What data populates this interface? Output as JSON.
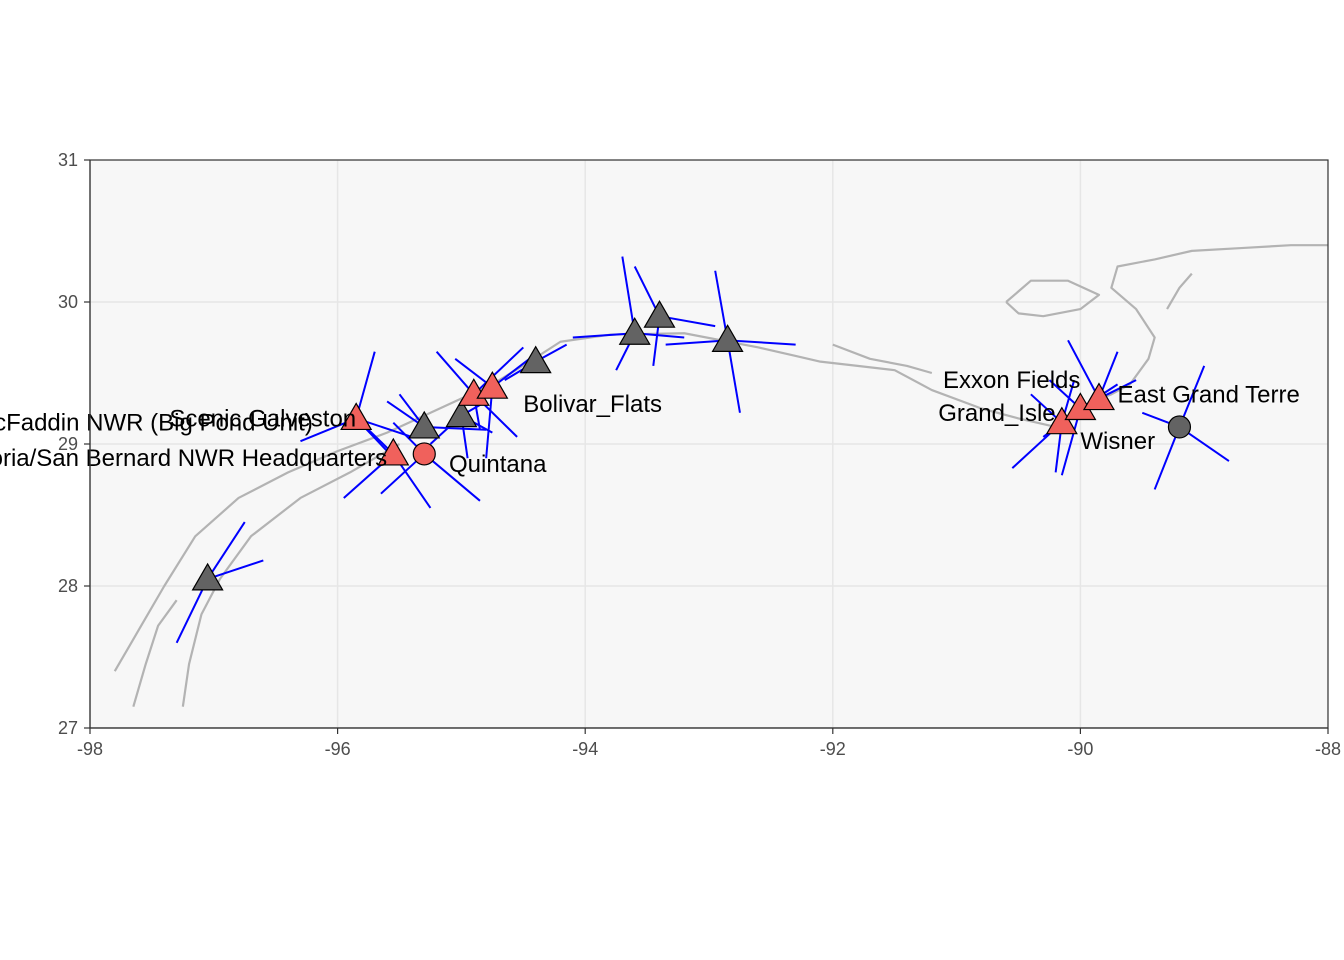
{
  "map": {
    "xlim": [
      -98,
      -88
    ],
    "ylim": [
      27,
      31
    ],
    "x_ticks": [
      {
        "value": -98,
        "label": "-98"
      },
      {
        "value": -96,
        "label": "-96"
      },
      {
        "value": -94,
        "label": "-94"
      },
      {
        "value": -92,
        "label": "-92"
      },
      {
        "value": -90,
        "label": "-90"
      },
      {
        "value": -88,
        "label": "-88"
      }
    ],
    "y_ticks": [
      {
        "value": 27,
        "label": "27"
      },
      {
        "value": 28,
        "label": "28"
      },
      {
        "value": 29,
        "label": "29"
      },
      {
        "value": 30,
        "label": "30"
      },
      {
        "value": 31,
        "label": "31"
      }
    ],
    "grid": true,
    "colors": {
      "panel": "#f7f7f7",
      "grid": "#e6e6e6",
      "coast": "#b3b3b3",
      "axis": "#333333",
      "wind": "#0000ff",
      "site_red": "#f0615c",
      "site_gray": "#636363",
      "outline": "#000000"
    }
  },
  "coast_lines": [
    [
      [
        -97.8,
        27.4
      ],
      [
        -97.6,
        27.7
      ],
      [
        -97.4,
        28.0
      ],
      [
        -97.15,
        28.35
      ],
      [
        -96.8,
        28.62
      ],
      [
        -96.4,
        28.8
      ],
      [
        -96.0,
        28.95
      ],
      [
        -95.6,
        29.08
      ],
      [
        -95.3,
        29.2
      ],
      [
        -95.0,
        29.32
      ],
      [
        -94.75,
        29.42
      ],
      [
        -94.45,
        29.58
      ],
      [
        -94.2,
        29.72
      ],
      [
        -93.8,
        29.77
      ],
      [
        -93.2,
        29.78
      ],
      [
        -92.6,
        29.68
      ],
      [
        -92.3,
        29.62
      ],
      [
        -92.1,
        29.58
      ],
      [
        -91.8,
        29.55
      ],
      [
        -91.5,
        29.52
      ],
      [
        -91.2,
        29.38
      ],
      [
        -90.8,
        29.25
      ],
      [
        -90.5,
        29.18
      ],
      [
        -90.2,
        29.12
      ],
      [
        -90.05,
        29.2
      ],
      [
        -89.9,
        29.3
      ],
      [
        -89.75,
        29.35
      ],
      [
        -89.6,
        29.42
      ],
      [
        -89.45,
        29.6
      ],
      [
        -89.4,
        29.75
      ],
      [
        -89.55,
        29.95
      ],
      [
        -89.75,
        30.1
      ],
      [
        -89.7,
        30.25
      ],
      [
        -89.4,
        30.3
      ],
      [
        -89.1,
        30.36
      ],
      [
        -88.7,
        30.38
      ],
      [
        -88.3,
        30.4
      ],
      [
        -88.0,
        30.4
      ]
    ],
    [
      [
        -97.25,
        27.15
      ],
      [
        -97.2,
        27.45
      ],
      [
        -97.1,
        27.8
      ],
      [
        -96.95,
        28.05
      ],
      [
        -96.7,
        28.35
      ],
      [
        -96.3,
        28.62
      ],
      [
        -95.9,
        28.8
      ],
      [
        -95.5,
        29.0
      ]
    ],
    [
      [
        -97.65,
        27.15
      ],
      [
        -97.55,
        27.45
      ],
      [
        -97.45,
        27.72
      ],
      [
        -97.3,
        27.9
      ]
    ],
    [
      [
        -90.6,
        30.0
      ],
      [
        -90.4,
        30.15
      ],
      [
        -90.1,
        30.15
      ],
      [
        -89.85,
        30.05
      ],
      [
        -90.0,
        29.95
      ],
      [
        -90.3,
        29.9
      ],
      [
        -90.5,
        29.92
      ],
      [
        -90.6,
        30.0
      ]
    ],
    [
      [
        -92.0,
        29.7
      ],
      [
        -91.7,
        29.6
      ],
      [
        -91.4,
        29.55
      ],
      [
        -91.2,
        29.5
      ]
    ],
    [
      [
        -89.3,
        29.95
      ],
      [
        -89.2,
        30.1
      ],
      [
        -89.1,
        30.2
      ]
    ]
  ],
  "wind_rays": [
    {
      "lon": -97.05,
      "lat": 28.05,
      "rays": [
        [
          -97.3,
          27.6
        ],
        [
          -96.75,
          28.45
        ],
        [
          -96.6,
          28.18
        ]
      ]
    },
    {
      "lon": -95.85,
      "lat": 29.18,
      "rays": [
        [
          -96.3,
          29.02
        ],
        [
          -95.7,
          29.65
        ],
        [
          -95.4,
          29.05
        ],
        [
          -95.6,
          28.95
        ]
      ]
    },
    {
      "lon": -95.55,
      "lat": 28.93,
      "rays": [
        [
          -95.95,
          28.62
        ],
        [
          -95.25,
          28.55
        ],
        [
          -95.75,
          29.1
        ]
      ]
    },
    {
      "lon": -95.3,
      "lat": 28.93,
      "rays": [
        [
          -94.85,
          28.6
        ],
        [
          -95.55,
          29.15
        ],
        [
          -95.65,
          28.65
        ]
      ]
    },
    {
      "lon": -95.3,
      "lat": 29.12,
      "rays": [
        [
          -95.5,
          29.35
        ],
        [
          -94.8,
          29.1
        ],
        [
          -95.6,
          29.3
        ]
      ]
    },
    {
      "lon": -95.0,
      "lat": 29.2,
      "rays": [
        [
          -94.8,
          29.3
        ],
        [
          -94.75,
          29.08
        ],
        [
          -95.25,
          29.0
        ],
        [
          -94.95,
          28.9
        ]
      ]
    },
    {
      "lon": -94.9,
      "lat": 29.35,
      "rays": [
        [
          -95.2,
          29.65
        ],
        [
          -94.5,
          29.68
        ],
        [
          -94.85,
          29.1
        ],
        [
          -94.55,
          29.05
        ]
      ]
    },
    {
      "lon": -94.75,
      "lat": 29.4,
      "rays": [
        [
          -95.05,
          29.6
        ],
        [
          -94.8,
          28.9
        ],
        [
          -94.45,
          29.6
        ]
      ]
    },
    {
      "lon": -94.4,
      "lat": 29.58,
      "rays": [
        [
          -94.65,
          29.45
        ],
        [
          -94.15,
          29.7
        ]
      ]
    },
    {
      "lon": -93.6,
      "lat": 29.78,
      "rays": [
        [
          -94.1,
          29.75
        ],
        [
          -93.75,
          29.52
        ],
        [
          -93.7,
          30.32
        ],
        [
          -93.2,
          29.75
        ]
      ]
    },
    {
      "lon": -93.4,
      "lat": 29.9,
      "rays": [
        [
          -93.6,
          30.25
        ],
        [
          -92.95,
          29.83
        ],
        [
          -93.45,
          29.55
        ]
      ]
    },
    {
      "lon": -92.85,
      "lat": 29.73,
      "rays": [
        [
          -92.75,
          29.22
        ],
        [
          -92.3,
          29.7
        ],
        [
          -92.95,
          30.22
        ],
        [
          -93.35,
          29.7
        ]
      ]
    },
    {
      "lon": -90.15,
      "lat": 29.15,
      "rays": [
        [
          -90.55,
          28.83
        ],
        [
          -90.05,
          29.45
        ],
        [
          -90.4,
          29.35
        ],
        [
          -90.2,
          28.8
        ]
      ]
    },
    {
      "lon": -90.0,
      "lat": 29.25,
      "rays": [
        [
          -90.25,
          29.45
        ],
        [
          -89.7,
          29.42
        ],
        [
          -90.15,
          28.78
        ],
        [
          -90.3,
          29.05
        ]
      ]
    },
    {
      "lon": -89.85,
      "lat": 29.32,
      "rays": [
        [
          -90.1,
          29.73
        ],
        [
          -89.55,
          29.45
        ],
        [
          -89.7,
          29.65
        ]
      ]
    },
    {
      "lon": -89.2,
      "lat": 29.12,
      "rays": [
        [
          -89.4,
          28.68
        ],
        [
          -89.0,
          29.55
        ],
        [
          -88.8,
          28.88
        ],
        [
          -89.5,
          29.22
        ]
      ]
    }
  ],
  "sites": [
    {
      "lon": -97.05,
      "lat": 28.05,
      "shape": "triangle",
      "color": "gray"
    },
    {
      "lon": -95.85,
      "lat": 29.18,
      "shape": "triangle",
      "color": "red"
    },
    {
      "lon": -95.55,
      "lat": 28.93,
      "shape": "triangle",
      "color": "red"
    },
    {
      "lon": -95.3,
      "lat": 28.93,
      "shape": "circle",
      "color": "red"
    },
    {
      "lon": -95.3,
      "lat": 29.12,
      "shape": "triangle",
      "color": "gray"
    },
    {
      "lon": -95.0,
      "lat": 29.2,
      "shape": "triangle",
      "color": "gray"
    },
    {
      "lon": -94.9,
      "lat": 29.35,
      "shape": "triangle",
      "color": "red"
    },
    {
      "lon": -94.75,
      "lat": 29.4,
      "shape": "triangle",
      "color": "red"
    },
    {
      "lon": -94.4,
      "lat": 29.58,
      "shape": "triangle",
      "color": "gray"
    },
    {
      "lon": -93.6,
      "lat": 29.78,
      "shape": "triangle",
      "color": "gray"
    },
    {
      "lon": -93.4,
      "lat": 29.9,
      "shape": "triangle",
      "color": "gray"
    },
    {
      "lon": -92.85,
      "lat": 29.73,
      "shape": "triangle",
      "color": "gray"
    },
    {
      "lon": -90.15,
      "lat": 29.15,
      "shape": "triangle",
      "color": "red"
    },
    {
      "lon": -90.0,
      "lat": 29.25,
      "shape": "triangle",
      "color": "red"
    },
    {
      "lon": -89.85,
      "lat": 29.32,
      "shape": "triangle",
      "color": "red"
    },
    {
      "lon": -89.2,
      "lat": 29.12,
      "shape": "circle",
      "color": "gray"
    }
  ],
  "labels": [
    {
      "text": "Scenic Galveston",
      "lon": -95.85,
      "lat": 29.18,
      "anchor": "end"
    },
    {
      "text": "McFaddin NWR (Big Pond Unit)",
      "lon": -96.2,
      "lat": 29.15,
      "anchor": "end"
    },
    {
      "text": "Brazoria/San Bernard NWR Headquarters",
      "lon": -95.6,
      "lat": 28.9,
      "anchor": "end"
    },
    {
      "text": "Quintana",
      "lon": -95.1,
      "lat": 28.86,
      "anchor": "start"
    },
    {
      "text": "Bolivar_Flats",
      "lon": -94.5,
      "lat": 29.28,
      "anchor": "start"
    },
    {
      "text": "Exxon Fields",
      "lon": -90.0,
      "lat": 29.45,
      "anchor": "end"
    },
    {
      "text": "Grand_Isle",
      "lon": -90.2,
      "lat": 29.22,
      "anchor": "end"
    },
    {
      "text": "East Grand Terre",
      "lon": -89.7,
      "lat": 29.35,
      "anchor": "start"
    },
    {
      "text": "Wisner",
      "lon": -90.0,
      "lat": 29.02,
      "anchor": "start"
    }
  ]
}
